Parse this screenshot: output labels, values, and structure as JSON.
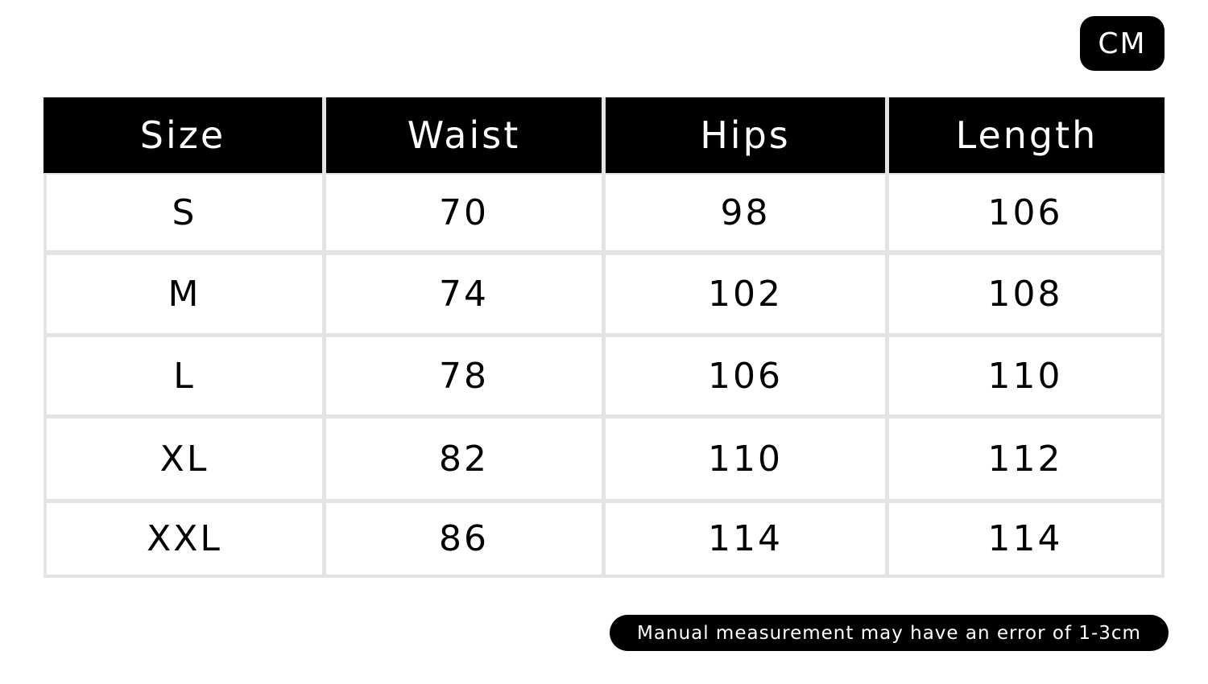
{
  "unit_badge": "CM",
  "table": {
    "headers": [
      "Size",
      "Waist",
      "Hips",
      "Length"
    ],
    "rows": [
      [
        "S",
        "70",
        "98",
        "106"
      ],
      [
        "M",
        "74",
        "102",
        "108"
      ],
      [
        "L",
        "78",
        "106",
        "110"
      ],
      [
        "XL",
        "82",
        "110",
        "112"
      ],
      [
        "XXL",
        "86",
        "114",
        "114"
      ]
    ]
  },
  "note": "Manual measurement may have an error of 1-3cm",
  "colors": {
    "header_bg": "#000000",
    "border": "#e3e3e3",
    "text": "#000000"
  }
}
